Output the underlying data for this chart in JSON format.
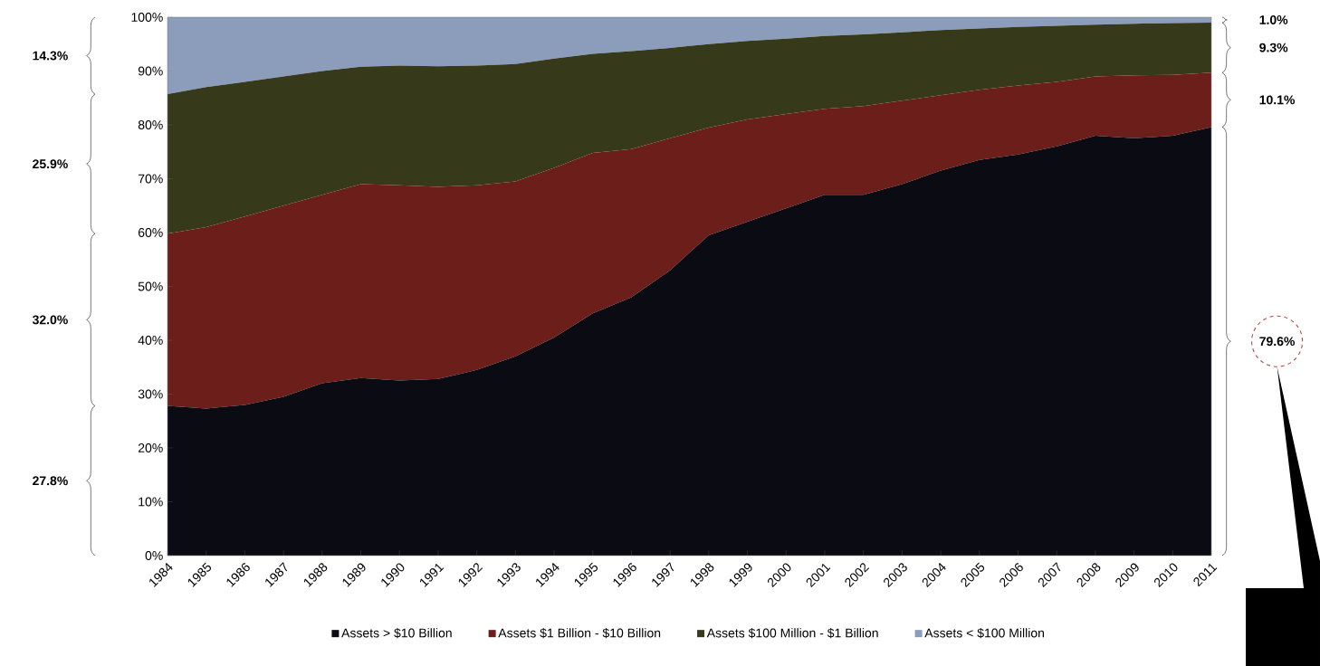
{
  "chart_data": {
    "type": "area",
    "stacked": true,
    "legend": "bottom",
    "categories": [
      "1984",
      "1985",
      "1986",
      "1987",
      "1988",
      "1989",
      "1990",
      "1991",
      "1992",
      "1993",
      "1994",
      "1995",
      "1996",
      "1997",
      "1998",
      "1999",
      "2000",
      "2001",
      "2002",
      "2003",
      "2004",
      "2005",
      "2006",
      "2007",
      "2008",
      "2009",
      "2010",
      "2011"
    ],
    "ylim": [
      0,
      100
    ],
    "yticks": [
      {
        "value": 0,
        "label": "0%"
      },
      {
        "value": 10,
        "label": "10%"
      },
      {
        "value": 20,
        "label": "20%"
      },
      {
        "value": 30,
        "label": "30%"
      },
      {
        "value": 40,
        "label": "40%"
      },
      {
        "value": 50,
        "label": "50%"
      },
      {
        "value": 60,
        "label": "60%"
      },
      {
        "value": 70,
        "label": "70%"
      },
      {
        "value": 80,
        "label": "80%"
      },
      {
        "value": 90,
        "label": "90%"
      },
      {
        "value": 100,
        "label": "100%"
      }
    ],
    "series": [
      {
        "name": "Assets > $10 Billion",
        "color": "#0b0b14",
        "values": [
          27.8,
          27.3,
          28,
          29.5,
          32,
          33,
          32.5,
          32.8,
          34.5,
          37,
          40.5,
          45,
          48,
          53,
          59.5,
          62,
          64.5,
          67,
          67,
          69,
          71.5,
          73.5,
          74.5,
          76,
          78,
          77.5,
          78,
          79.6
        ]
      },
      {
        "name": "Assets $1 Billion - $10 Billion",
        "color": "#6b1e1a",
        "values": [
          32.0,
          33.7,
          35,
          35.5,
          35,
          36,
          36.3,
          35.7,
          34.3,
          32.5,
          31.5,
          29.8,
          27.5,
          24.5,
          20,
          19,
          17.5,
          16,
          16.5,
          15.5,
          14,
          13,
          12.8,
          12,
          11,
          11.7,
          11.3,
          10.1
        ]
      },
      {
        "name": "Assets $100 Million - $1 Billion",
        "color": "#363a1a",
        "values": [
          25.9,
          26,
          25,
          24,
          23,
          21.8,
          22.2,
          22.4,
          22.2,
          21.8,
          20.3,
          18.4,
          18.2,
          16.8,
          15.5,
          14.6,
          14,
          13.5,
          13.3,
          12.7,
          12.1,
          11.4,
          10.9,
          10.4,
          9.6,
          9.6,
          9.6,
          9.3
        ]
      },
      {
        "name": "Assets < $100 Million",
        "color": "#8b9dbb",
        "values": [
          14.3,
          13,
          12,
          11,
          10,
          9.2,
          9,
          9.1,
          9,
          8.7,
          7.7,
          6.8,
          6.3,
          5.7,
          5,
          4.4,
          4,
          3.5,
          3.2,
          2.8,
          2.4,
          2.1,
          1.8,
          1.6,
          1.4,
          1.2,
          1.1,
          1.0
        ]
      }
    ],
    "annotations": [
      "14.3%",
      "25.9%",
      "32.0%",
      "27.8%",
      "1.0%",
      "9.3%",
      "10.1%",
      "79.6%"
    ]
  }
}
